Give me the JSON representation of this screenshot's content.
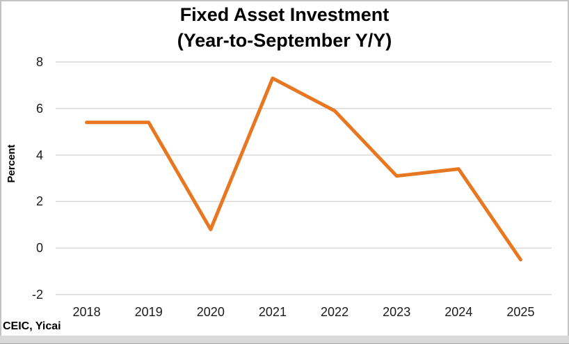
{
  "title": {
    "line1": "Fixed Asset Investment",
    "line2": "(Year-to-September Y/Y)"
  },
  "source": "CEIC, Yicai",
  "chart_data": {
    "type": "line",
    "title": "Fixed Asset Investment (Year-to-September Y/Y)",
    "categories": [
      "2018",
      "2019",
      "2020",
      "2021",
      "2022",
      "2023",
      "2024",
      "2025"
    ],
    "values": [
      5.4,
      5.4,
      0.8,
      7.3,
      5.9,
      3.1,
      3.4,
      -0.5
    ],
    "xlabel": "",
    "ylabel": "Percent",
    "ylim": [
      -2,
      8
    ],
    "yticks": [
      8,
      6,
      4,
      2,
      0,
      -2
    ],
    "grid": "horizontal-only",
    "legend": "none",
    "line_color": "#E87722",
    "gridline_color": "#D9D9D9",
    "border_color": "#C3C3C3",
    "bottom_bar_color": "#D9D9D9"
  }
}
